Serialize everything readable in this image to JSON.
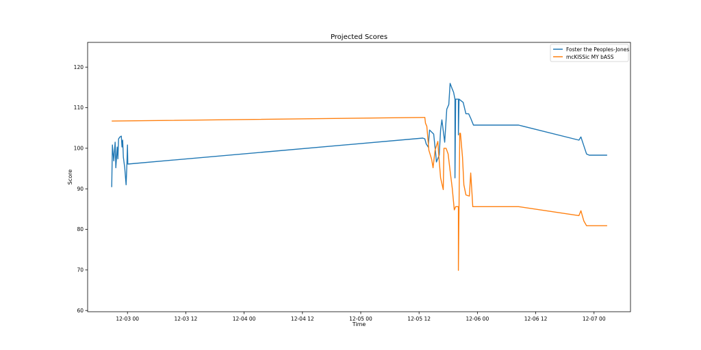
{
  "chart_data": {
    "type": "line",
    "title": "Projected Scores",
    "xlabel": "Time",
    "ylabel": "Score",
    "x_units": "hours since 12-03 00",
    "xlim": [
      -8.2,
      103.5
    ],
    "ylim": [
      59.7,
      126.1
    ],
    "x_ticks": [
      {
        "value": 0,
        "label": "12-03 00"
      },
      {
        "value": 12,
        "label": "12-03 12"
      },
      {
        "value": 24,
        "label": "12-04 00"
      },
      {
        "value": 36,
        "label": "12-04 12"
      },
      {
        "value": 48,
        "label": "12-05 00"
      },
      {
        "value": 60,
        "label": "12-05 12"
      },
      {
        "value": 72,
        "label": "12-06 00"
      },
      {
        "value": 84,
        "label": "12-06 12"
      },
      {
        "value": 96,
        "label": "12-07 00"
      }
    ],
    "y_ticks": [
      60,
      70,
      80,
      90,
      100,
      110,
      120
    ],
    "grid": false,
    "legend_position": "top-right",
    "series": [
      {
        "name": "Foster the Peoples-Jones",
        "color": "#1f77b4",
        "points": [
          [
            -3.24,
            90.4
          ],
          [
            -3.1,
            100.8
          ],
          [
            -2.82,
            96.9
          ],
          [
            -2.54,
            101.5
          ],
          [
            -2.4,
            95.2
          ],
          [
            -2.11,
            100.3
          ],
          [
            -1.97,
            97.4
          ],
          [
            -1.83,
            102.3
          ],
          [
            -1.55,
            102.8
          ],
          [
            -1.27,
            103.0
          ],
          [
            -1.13,
            100.3
          ],
          [
            -0.99,
            102.0
          ],
          [
            -0.85,
            97.8
          ],
          [
            -0.56,
            95.2
          ],
          [
            -0.28,
            91.0
          ],
          [
            -0.14,
            95.2
          ],
          [
            0,
            100.8
          ],
          [
            0.07,
            96.1
          ],
          [
            60.76,
            102.5
          ],
          [
            61.18,
            102.3
          ],
          [
            61.46,
            101.1
          ],
          [
            61.88,
            100.3
          ],
          [
            62.16,
            104.5
          ],
          [
            63.01,
            103.5
          ],
          [
            63.43,
            98.6
          ],
          [
            63.57,
            96.6
          ],
          [
            64.14,
            98.3
          ],
          [
            64.42,
            104.5
          ],
          [
            64.7,
            107.0
          ],
          [
            65.27,
            101.5
          ],
          [
            65.69,
            109.6
          ],
          [
            66.11,
            110.8
          ],
          [
            66.39,
            116.0
          ],
          [
            66.82,
            114.6
          ],
          [
            67.1,
            113.8
          ],
          [
            67.38,
            112.1
          ],
          [
            67.38,
            92.7
          ],
          [
            67.52,
            112.1
          ],
          [
            67.8,
            112.1
          ],
          [
            68.09,
            112.1
          ],
          [
            68.09,
            103.3
          ],
          [
            68.23,
            112.1
          ],
          [
            69.07,
            111.3
          ],
          [
            69.64,
            108.5
          ],
          [
            70.2,
            108.5
          ],
          [
            70.62,
            107.4
          ],
          [
            71.19,
            105.7
          ],
          [
            80.49,
            105.7
          ],
          [
            92.9,
            102.0
          ],
          [
            93.3,
            102.8
          ],
          [
            93.6,
            101.7
          ],
          [
            94.45,
            98.6
          ],
          [
            95.0,
            98.3
          ],
          [
            98.7,
            98.3
          ]
        ]
      },
      {
        "name": "mcKISSic MY bASS",
        "color": "#ff7f0e",
        "points": [
          [
            -3.24,
            106.7
          ],
          [
            60.76,
            107.6
          ],
          [
            61.18,
            107.6
          ],
          [
            61.32,
            106.2
          ],
          [
            61.6,
            105.4
          ],
          [
            62.02,
            99.5
          ],
          [
            62.58,
            97.3
          ],
          [
            62.87,
            95.2
          ],
          [
            63.29,
            99.5
          ],
          [
            63.86,
            101.7
          ],
          [
            64.0,
            99.0
          ],
          [
            64.42,
            92.7
          ],
          [
            64.98,
            89.8
          ],
          [
            65.12,
            100.0
          ],
          [
            65.55,
            100.0
          ],
          [
            65.97,
            98.6
          ],
          [
            66.39,
            94.4
          ],
          [
            66.82,
            90.2
          ],
          [
            67.24,
            84.8
          ],
          [
            67.52,
            85.6
          ],
          [
            68.09,
            85.6
          ],
          [
            68.09,
            69.9
          ],
          [
            68.37,
            103.7
          ],
          [
            68.51,
            103.7
          ],
          [
            68.93,
            97.8
          ],
          [
            69.21,
            91.0
          ],
          [
            69.64,
            88.5
          ],
          [
            70.34,
            88.2
          ],
          [
            70.62,
            93.9
          ],
          [
            70.9,
            88.5
          ],
          [
            71.05,
            85.6
          ],
          [
            80.49,
            85.6
          ],
          [
            92.9,
            83.4
          ],
          [
            93.3,
            84.6
          ],
          [
            93.9,
            82.1
          ],
          [
            94.45,
            80.9
          ],
          [
            98.7,
            80.9
          ]
        ]
      }
    ]
  }
}
